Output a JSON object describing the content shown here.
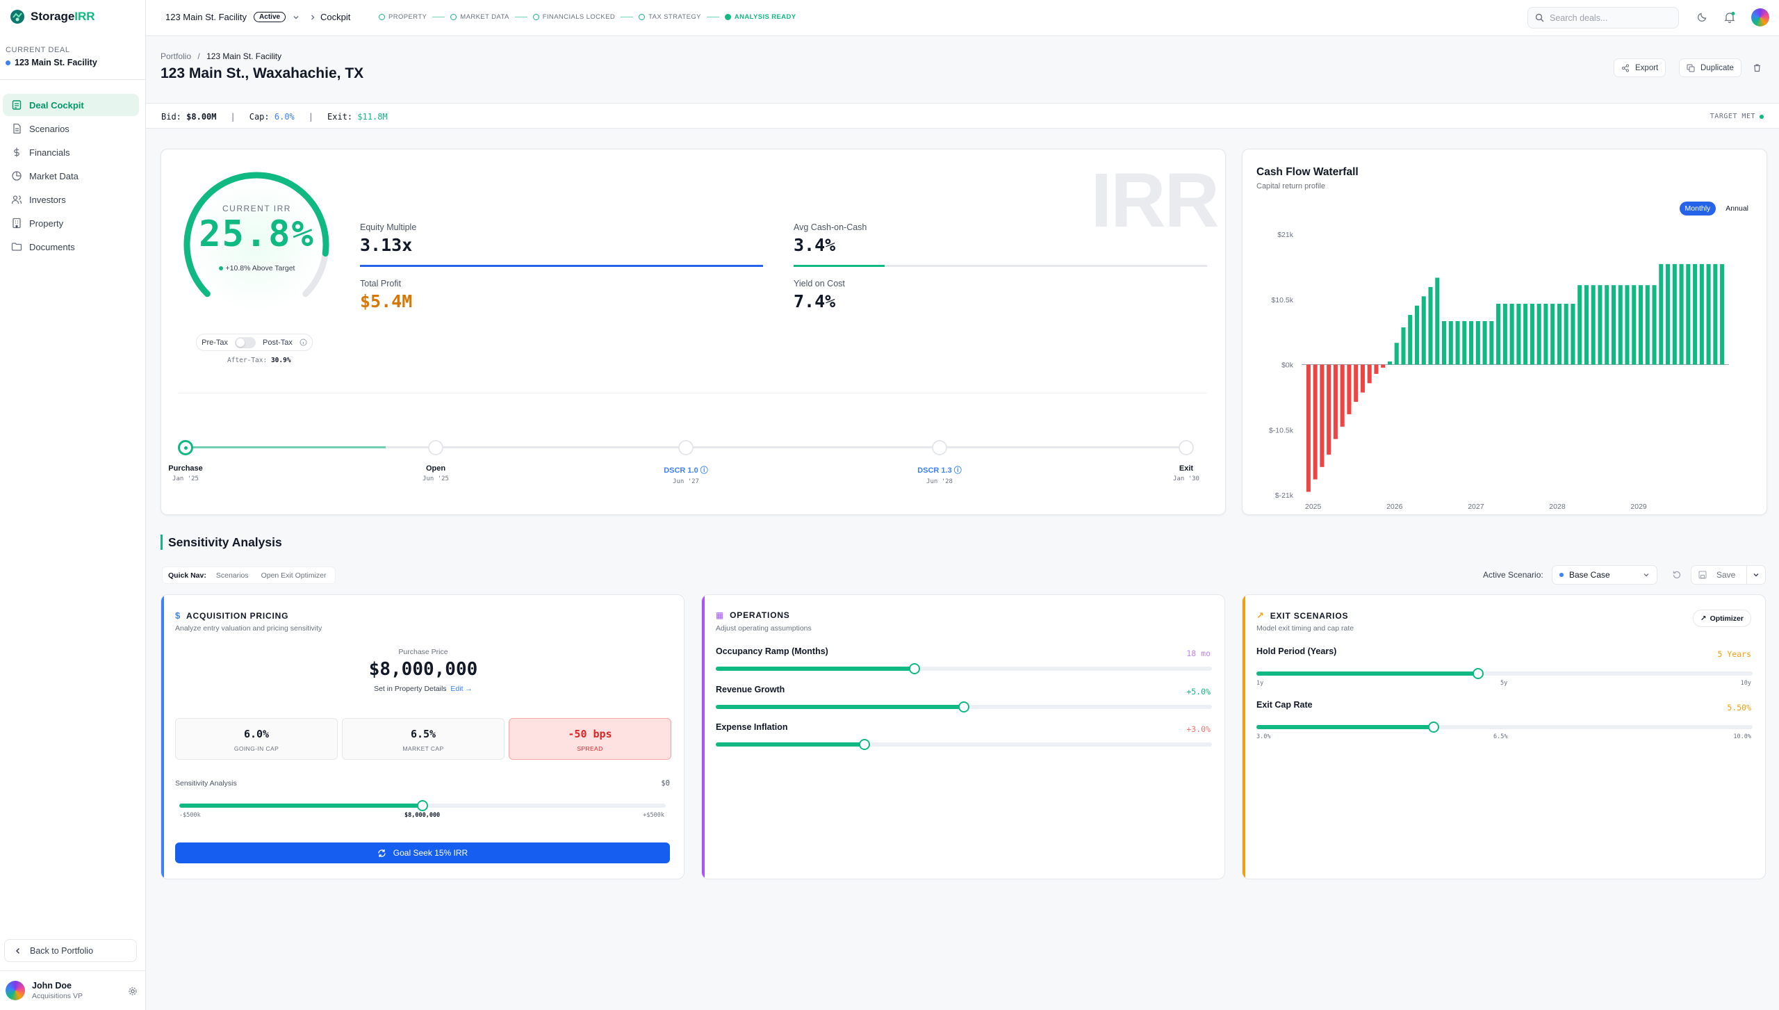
{
  "app": {
    "name_main": "Storage",
    "name_accent": "IRR"
  },
  "sidebar": {
    "current_deal_label": "CURRENT DEAL",
    "current_deal_name": "123 Main St. Facility",
    "items": [
      {
        "label": "Deal Cockpit",
        "icon": "dashboard-icon",
        "active": true
      },
      {
        "label": "Scenarios",
        "icon": "document-icon"
      },
      {
        "label": "Financials",
        "icon": "dollar-icon"
      },
      {
        "label": "Market Data",
        "icon": "chart-pie-icon"
      },
      {
        "label": "Investors",
        "icon": "users-icon"
      },
      {
        "label": "Property",
        "icon": "building-icon"
      },
      {
        "label": "Documents",
        "icon": "folder-icon"
      }
    ],
    "back_label": "Back to Portfolio",
    "user": {
      "name": "John Doe",
      "role": "Acquisitions VP"
    }
  },
  "topbar": {
    "deal": "123 Main St. Facility",
    "status": "Active",
    "page": "Cockpit",
    "steps": [
      {
        "label": "PROPERTY",
        "done": false
      },
      {
        "label": "MARKET DATA",
        "done": false
      },
      {
        "label": "FINANCIALS LOCKED",
        "done": false
      },
      {
        "label": "TAX STRATEGY",
        "done": false
      },
      {
        "label": "ANALYSIS READY",
        "done": true
      }
    ],
    "search_placeholder": "Search deals..."
  },
  "header": {
    "crumb_root": "Portfolio",
    "crumb_sep": "/",
    "crumb_current": "123 Main St. Facility",
    "title": "123 Main St., Waxahachie, TX",
    "export_label": "Export",
    "duplicate_label": "Duplicate"
  },
  "metrics": {
    "bid_label": "Bid:",
    "bid": "$8.00M",
    "cap_label": "Cap:",
    "cap": "6.0%",
    "exit_label": "Exit:",
    "exit": "$11.8M",
    "sep": "|",
    "target": "TARGET MET"
  },
  "irr": {
    "watermark": "IRR",
    "label": "CURRENT IRR",
    "value": "25.8%",
    "gauge_fraction": 0.86,
    "above_target": "+10.8% Above Target",
    "pre_tax": "Pre-Tax",
    "post_tax": "Post-Tax",
    "after_tax_label": "After-Tax:",
    "after_tax_value": "30.9%",
    "kpis": [
      {
        "label": "Equity Multiple",
        "value": "3.13x",
        "bar": 1.0,
        "color": "#2563eb"
      },
      {
        "label": "Avg Cash-on-Cash",
        "value": "3.4%",
        "bar": 0.22,
        "color": "#10b981"
      },
      {
        "label": "Total Profit",
        "value": "$5.4M",
        "color": "#d97706"
      },
      {
        "label": "Yield on Cost",
        "value": "7.4%"
      }
    ],
    "timeline": {
      "progress": 0.2,
      "nodes": [
        {
          "label": "Purchase",
          "date": "Jan '25",
          "active": true
        },
        {
          "label": "Open",
          "date": "Jun '25"
        },
        {
          "label": "DSCR 1.0",
          "date": "Jun '27",
          "blue": true
        },
        {
          "label": "DSCR 1.3",
          "date": "Jun '28",
          "blue": true
        },
        {
          "label": "Exit",
          "date": "Jan '30"
        }
      ]
    }
  },
  "cashflow": {
    "title": "Cash Flow Waterfall",
    "subtitle": "Capital return profile",
    "toggle": [
      "Monthly",
      "Annual"
    ]
  },
  "chart_data": {
    "type": "bar",
    "title": "Cash Flow Waterfall",
    "y_ticks": [
      "$21k",
      "$10.5k",
      "$0k",
      "$-10.5k",
      "$-21k"
    ],
    "ylim": [
      -21000,
      21000
    ],
    "x_ticks": [
      "2025",
      "2026",
      "2027",
      "2028",
      "2029"
    ],
    "values": [
      -20500,
      -18500,
      -16500,
      -14500,
      -12000,
      -10000,
      -8000,
      -6000,
      -4500,
      -3000,
      -1500,
      -500,
      500,
      3500,
      6000,
      8000,
      9500,
      11000,
      12500,
      14000,
      7000,
      7000,
      7000,
      7000,
      7000,
      7000,
      7000,
      7000,
      9800,
      9800,
      9800,
      9800,
      9800,
      9800,
      9800,
      9800,
      9800,
      9800,
      9800,
      9800,
      12800,
      12800,
      12800,
      12800,
      12800,
      12800,
      12800,
      12800,
      12800,
      12800,
      12800,
      12800,
      16200,
      16200,
      16200,
      16200,
      16200,
      16200,
      16200,
      16200,
      16200,
      16200
    ]
  },
  "sensitivity": {
    "title": "Sensitivity Analysis",
    "quicknav_label": "Quick Nav:",
    "quicknav": [
      "Scenarios",
      "Open Exit Optimizer"
    ],
    "active_scenario_label": "Active Scenario:",
    "active_scenario": "Base Case",
    "save_label": "Save",
    "acq": {
      "title": "ACQUISITION PRICING",
      "subtitle": "Analyze entry valuation and pricing sensitivity",
      "pp_label": "Purchase Price",
      "pp_value": "$8,000,000",
      "pp_note": "Set in Property Details",
      "edit": "Edit →",
      "caps": [
        {
          "value": "6.0%",
          "label": "GOING-IN CAP"
        },
        {
          "value": "6.5%",
          "label": "MARKET CAP"
        },
        {
          "value": "-50 bps",
          "label": "SPREAD"
        }
      ],
      "sa_label": "Sensitivity Analysis",
      "sa_value": "$0",
      "sa_fraction": 0.5,
      "sa_ticks": [
        "-$500k",
        "$8,000,000",
        "+$500k"
      ],
      "goal_btn": "Goal Seek 15% IRR"
    },
    "ops": {
      "title": "OPERATIONS",
      "subtitle": "Adjust operating assumptions",
      "controls": [
        {
          "label": "Occupancy Ramp (Months)",
          "value": "18 mo",
          "fraction": 0.4,
          "color": "#c084fc"
        },
        {
          "label": "Revenue Growth",
          "value": "+5.0%",
          "fraction": 0.5,
          "color": "#10b981"
        },
        {
          "label": "Expense Inflation",
          "value": "+3.0%",
          "fraction": 0.3,
          "color": "#f87171"
        }
      ]
    },
    "exit": {
      "title": "EXIT SCENARIOS",
      "subtitle": "Model exit timing and cap rate",
      "optimizer": "Optimizer",
      "hold": {
        "label": "Hold Period (Years)",
        "value": "5 Years",
        "fraction": 0.447,
        "ticks": [
          "1y",
          "5y",
          "10y"
        ]
      },
      "cap": {
        "label": "Exit Cap Rate",
        "value": "5.50%",
        "fraction": 0.357,
        "ticks": [
          "3.0%",
          "6.5%",
          "10.0%"
        ]
      }
    }
  }
}
